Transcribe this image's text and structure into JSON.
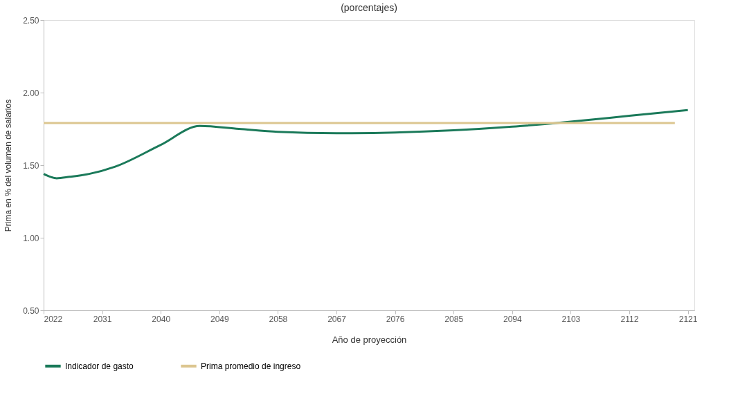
{
  "chart_data": {
    "type": "line",
    "title": "(porcentajes)",
    "xlabel": "Año de proyección",
    "ylabel": "Prima en % del volumen de salarios",
    "series": [
      {
        "name": "Indicador de gasto",
        "color": "#1b7a5a",
        "x": [
          2022,
          2024,
          2026,
          2029,
          2033,
          2040,
          2046,
          2052,
          2058,
          2067,
          2076,
          2085,
          2094,
          2103,
          2112,
          2121
        ],
        "values": [
          1.44,
          1.41,
          1.42,
          1.44,
          1.49,
          1.64,
          1.77,
          1.75,
          1.73,
          1.72,
          1.725,
          1.74,
          1.765,
          1.8,
          1.84,
          1.88
        ]
      },
      {
        "name": "Prima promedio de ingreso",
        "color": "#dcc690",
        "x": [
          2022,
          2119
        ],
        "values": [
          1.79,
          1.79
        ]
      }
    ],
    "xlim": [
      2022,
      2122
    ],
    "xticks": [
      2022,
      2031,
      2040,
      2049,
      2058,
      2067,
      2076,
      2085,
      2094,
      2103,
      2112,
      2121
    ],
    "ylim": [
      0.5,
      2.5
    ],
    "yticks": [
      {
        "value": 0.5,
        "label": "0.50"
      },
      {
        "value": 1.0,
        "label": "1.00"
      },
      {
        "value": 1.5,
        "label": "1.50"
      },
      {
        "value": 2.0,
        "label": "2.00"
      },
      {
        "value": 2.5,
        "label": "2.50"
      }
    ],
    "grid": false,
    "legend": "bottom",
    "line_style": "solid",
    "marker": "none"
  }
}
